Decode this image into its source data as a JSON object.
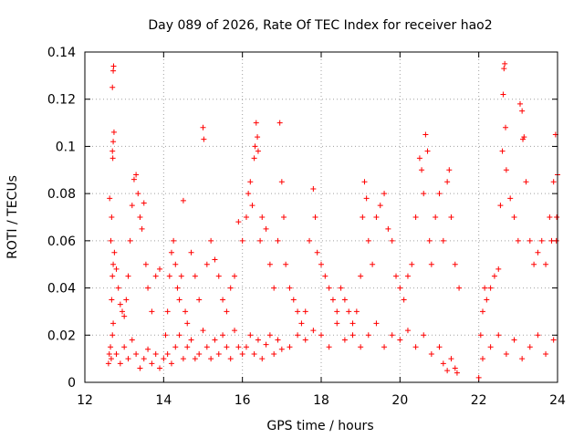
{
  "chart_data": {
    "type": "scatter",
    "title": "Day 089 of 2026, Rate Of TEC Index for receiver hao2",
    "xlabel": "GPS time / hours",
    "ylabel": "ROTI / TECUs",
    "xlim": [
      12,
      24
    ],
    "ylim": [
      0,
      0.14
    ],
    "x_ticks": [
      12,
      14,
      16,
      18,
      20,
      22,
      24
    ],
    "y_ticks": [
      0,
      0.02,
      0.04,
      0.06,
      0.08,
      0.1,
      0.12,
      0.14
    ],
    "x_tick_labels": [
      "12",
      "14",
      "16",
      "18",
      "20",
      "22",
      "24"
    ],
    "y_tick_labels": [
      "0",
      "0.02",
      "0.04",
      "0.06",
      "0.08",
      "0.1",
      "0.12",
      "0.14"
    ],
    "grid": true,
    "marker": "plus",
    "color": "#ff0000",
    "series": [
      {
        "points": [
          [
            12.6,
            0.008
          ],
          [
            12.62,
            0.012
          ],
          [
            12.65,
            0.015
          ],
          [
            12.67,
            0.01
          ],
          [
            12.7,
            0.02
          ],
          [
            12.72,
            0.025
          ],
          [
            12.68,
            0.035
          ],
          [
            12.7,
            0.045
          ],
          [
            12.72,
            0.05
          ],
          [
            12.75,
            0.055
          ],
          [
            12.66,
            0.06
          ],
          [
            12.68,
            0.07
          ],
          [
            12.63,
            0.078
          ],
          [
            12.7,
            0.098
          ],
          [
            12.72,
            0.102
          ],
          [
            12.74,
            0.106
          ],
          [
            12.71,
            0.095
          ],
          [
            12.7,
            0.125
          ],
          [
            12.72,
            0.132
          ],
          [
            12.73,
            0.134
          ],
          [
            12.8,
            0.048
          ],
          [
            12.85,
            0.04
          ],
          [
            12.9,
            0.033
          ],
          [
            12.95,
            0.03
          ],
          [
            13.0,
            0.028
          ],
          [
            13.05,
            0.035
          ],
          [
            13.1,
            0.045
          ],
          [
            13.15,
            0.06
          ],
          [
            13.2,
            0.075
          ],
          [
            13.25,
            0.086
          ],
          [
            13.3,
            0.088
          ],
          [
            13.35,
            0.08
          ],
          [
            13.4,
            0.07
          ],
          [
            13.45,
            0.065
          ],
          [
            13.5,
            0.076
          ],
          [
            13.55,
            0.05
          ],
          [
            13.6,
            0.04
          ],
          [
            13.7,
            0.03
          ],
          [
            13.8,
            0.045
          ],
          [
            13.9,
            0.048
          ],
          [
            12.8,
            0.012
          ],
          [
            12.9,
            0.008
          ],
          [
            13.0,
            0.015
          ],
          [
            13.1,
            0.01
          ],
          [
            13.2,
            0.018
          ],
          [
            13.3,
            0.012
          ],
          [
            13.4,
            0.006
          ],
          [
            13.5,
            0.01
          ],
          [
            13.6,
            0.014
          ],
          [
            13.7,
            0.008
          ],
          [
            13.8,
            0.012
          ],
          [
            13.9,
            0.006
          ],
          [
            14.0,
            0.01
          ],
          [
            14.05,
            0.02
          ],
          [
            14.1,
            0.03
          ],
          [
            14.15,
            0.045
          ],
          [
            14.2,
            0.055
          ],
          [
            14.25,
            0.06
          ],
          [
            14.3,
            0.05
          ],
          [
            14.35,
            0.04
          ],
          [
            14.4,
            0.035
          ],
          [
            14.45,
            0.045
          ],
          [
            14.5,
            0.077
          ],
          [
            14.55,
            0.03
          ],
          [
            14.6,
            0.025
          ],
          [
            14.7,
            0.055
          ],
          [
            14.8,
            0.045
          ],
          [
            14.9,
            0.035
          ],
          [
            15.0,
            0.108
          ],
          [
            15.02,
            0.103
          ],
          [
            15.1,
            0.05
          ],
          [
            15.2,
            0.06
          ],
          [
            15.3,
            0.052
          ],
          [
            15.4,
            0.045
          ],
          [
            15.5,
            0.035
          ],
          [
            15.6,
            0.03
          ],
          [
            15.7,
            0.04
          ],
          [
            15.8,
            0.045
          ],
          [
            15.9,
            0.068
          ],
          [
            16.0,
            0.06
          ],
          [
            14.1,
            0.012
          ],
          [
            14.2,
            0.008
          ],
          [
            14.3,
            0.015
          ],
          [
            14.4,
            0.02
          ],
          [
            14.5,
            0.01
          ],
          [
            14.6,
            0.015
          ],
          [
            14.7,
            0.018
          ],
          [
            14.8,
            0.01
          ],
          [
            14.9,
            0.012
          ],
          [
            15.0,
            0.022
          ],
          [
            15.1,
            0.015
          ],
          [
            15.2,
            0.01
          ],
          [
            15.3,
            0.018
          ],
          [
            15.4,
            0.012
          ],
          [
            15.5,
            0.02
          ],
          [
            15.6,
            0.015
          ],
          [
            15.7,
            0.01
          ],
          [
            15.8,
            0.022
          ],
          [
            15.9,
            0.015
          ],
          [
            16.0,
            0.012
          ],
          [
            16.1,
            0.07
          ],
          [
            16.15,
            0.08
          ],
          [
            16.2,
            0.085
          ],
          [
            16.25,
            0.075
          ],
          [
            16.3,
            0.095
          ],
          [
            16.32,
            0.1
          ],
          [
            16.35,
            0.11
          ],
          [
            16.38,
            0.104
          ],
          [
            16.4,
            0.098
          ],
          [
            16.45,
            0.06
          ],
          [
            16.5,
            0.07
          ],
          [
            16.6,
            0.065
          ],
          [
            16.7,
            0.05
          ],
          [
            16.8,
            0.04
          ],
          [
            16.9,
            0.06
          ],
          [
            16.95,
            0.11
          ],
          [
            17.0,
            0.085
          ],
          [
            17.05,
            0.07
          ],
          [
            17.1,
            0.05
          ],
          [
            17.2,
            0.04
          ],
          [
            16.1,
            0.015
          ],
          [
            16.2,
            0.02
          ],
          [
            16.3,
            0.012
          ],
          [
            16.4,
            0.018
          ],
          [
            16.5,
            0.01
          ],
          [
            16.6,
            0.016
          ],
          [
            16.7,
            0.02
          ],
          [
            16.8,
            0.012
          ],
          [
            16.9,
            0.018
          ],
          [
            17.0,
            0.014
          ],
          [
            17.3,
            0.035
          ],
          [
            17.4,
            0.03
          ],
          [
            17.5,
            0.025
          ],
          [
            17.6,
            0.03
          ],
          [
            17.7,
            0.06
          ],
          [
            17.8,
            0.082
          ],
          [
            17.85,
            0.07
          ],
          [
            17.9,
            0.055
          ],
          [
            18.0,
            0.05
          ],
          [
            18.1,
            0.045
          ],
          [
            18.2,
            0.04
          ],
          [
            18.3,
            0.035
          ],
          [
            18.4,
            0.03
          ],
          [
            18.5,
            0.04
          ],
          [
            18.6,
            0.035
          ],
          [
            18.7,
            0.03
          ],
          [
            18.8,
            0.025
          ],
          [
            18.9,
            0.03
          ],
          [
            19.0,
            0.045
          ],
          [
            19.05,
            0.07
          ],
          [
            17.2,
            0.015
          ],
          [
            17.4,
            0.02
          ],
          [
            17.6,
            0.018
          ],
          [
            17.8,
            0.022
          ],
          [
            18.0,
            0.02
          ],
          [
            18.2,
            0.015
          ],
          [
            18.4,
            0.025
          ],
          [
            18.6,
            0.018
          ],
          [
            18.8,
            0.02
          ],
          [
            19.0,
            0.015
          ],
          [
            19.1,
            0.085
          ],
          [
            19.15,
            0.078
          ],
          [
            19.2,
            0.06
          ],
          [
            19.3,
            0.05
          ],
          [
            19.4,
            0.07
          ],
          [
            19.5,
            0.075
          ],
          [
            19.6,
            0.08
          ],
          [
            19.7,
            0.065
          ],
          [
            19.8,
            0.06
          ],
          [
            19.9,
            0.045
          ],
          [
            20.0,
            0.04
          ],
          [
            20.1,
            0.035
          ],
          [
            20.2,
            0.045
          ],
          [
            20.3,
            0.05
          ],
          [
            20.4,
            0.07
          ],
          [
            20.5,
            0.095
          ],
          [
            20.55,
            0.09
          ],
          [
            20.6,
            0.08
          ],
          [
            20.65,
            0.105
          ],
          [
            20.7,
            0.098
          ],
          [
            20.75,
            0.06
          ],
          [
            20.8,
            0.05
          ],
          [
            20.9,
            0.07
          ],
          [
            21.0,
            0.08
          ],
          [
            21.1,
            0.06
          ],
          [
            21.2,
            0.085
          ],
          [
            21.25,
            0.09
          ],
          [
            21.3,
            0.07
          ],
          [
            21.4,
            0.05
          ],
          [
            21.5,
            0.04
          ],
          [
            19.2,
            0.02
          ],
          [
            19.4,
            0.025
          ],
          [
            19.6,
            0.015
          ],
          [
            19.8,
            0.02
          ],
          [
            20.0,
            0.018
          ],
          [
            20.2,
            0.022
          ],
          [
            20.4,
            0.015
          ],
          [
            20.6,
            0.02
          ],
          [
            20.8,
            0.012
          ],
          [
            21.0,
            0.015
          ],
          [
            21.1,
            0.008
          ],
          [
            21.2,
            0.005
          ],
          [
            21.3,
            0.01
          ],
          [
            21.4,
            0.006
          ],
          [
            21.45,
            0.004
          ],
          [
            22.0,
            0.002
          ],
          [
            22.05,
            0.02
          ],
          [
            22.1,
            0.03
          ],
          [
            22.15,
            0.04
          ],
          [
            22.2,
            0.035
          ],
          [
            22.3,
            0.04
          ],
          [
            22.4,
            0.045
          ],
          [
            22.5,
            0.048
          ],
          [
            22.55,
            0.075
          ],
          [
            22.6,
            0.098
          ],
          [
            22.62,
            0.122
          ],
          [
            22.64,
            0.133
          ],
          [
            22.66,
            0.135
          ],
          [
            22.68,
            0.108
          ],
          [
            22.7,
            0.09
          ],
          [
            22.8,
            0.078
          ],
          [
            22.9,
            0.07
          ],
          [
            23.0,
            0.06
          ],
          [
            23.05,
            0.118
          ],
          [
            23.1,
            0.115
          ],
          [
            23.12,
            0.103
          ],
          [
            23.15,
            0.104
          ],
          [
            23.2,
            0.085
          ],
          [
            23.3,
            0.06
          ],
          [
            23.4,
            0.05
          ],
          [
            23.5,
            0.055
          ],
          [
            23.6,
            0.06
          ],
          [
            23.7,
            0.05
          ],
          [
            23.8,
            0.07
          ],
          [
            23.85,
            0.06
          ],
          [
            23.9,
            0.085
          ],
          [
            23.95,
            0.105
          ],
          [
            24.0,
            0.088
          ],
          [
            23.98,
            0.07
          ],
          [
            23.97,
            0.06
          ],
          [
            22.1,
            0.01
          ],
          [
            22.3,
            0.015
          ],
          [
            22.5,
            0.02
          ],
          [
            22.7,
            0.012
          ],
          [
            22.9,
            0.018
          ],
          [
            23.1,
            0.01
          ],
          [
            23.3,
            0.015
          ],
          [
            23.5,
            0.02
          ],
          [
            23.7,
            0.012
          ],
          [
            23.9,
            0.018
          ]
        ]
      }
    ]
  }
}
